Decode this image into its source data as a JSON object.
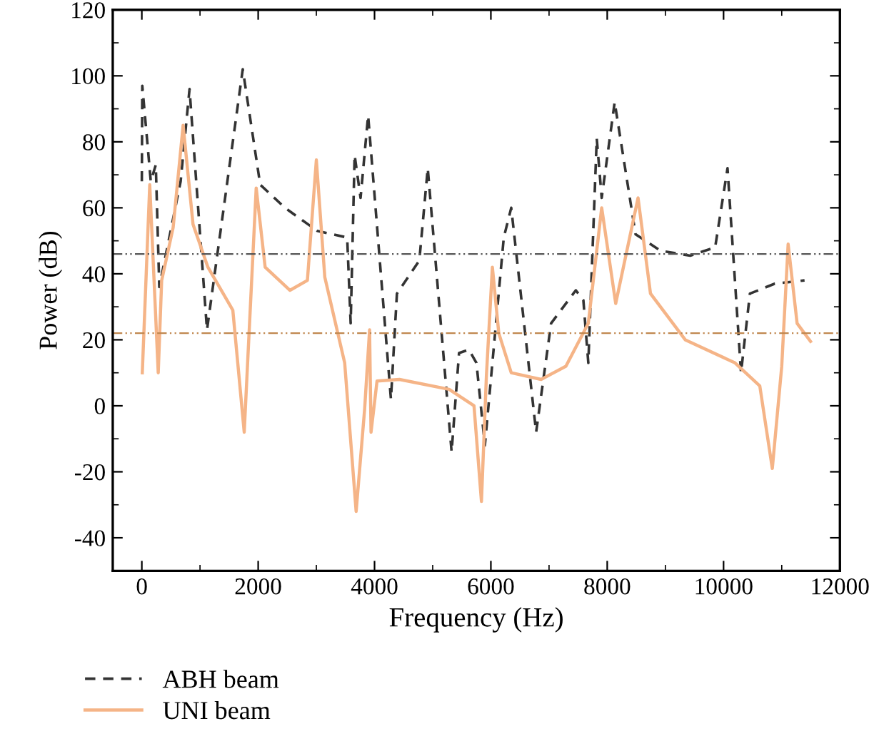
{
  "chart_data": {
    "type": "line",
    "xlabel": "Frequency (Hz)",
    "ylabel": "Power (dB)",
    "xlim": [
      -500,
      12000
    ],
    "xticks": [
      0,
      2000,
      4000,
      6000,
      8000,
      10000,
      12000
    ],
    "ylim": [
      -50,
      120
    ],
    "yticks": [
      -40,
      -20,
      0,
      20,
      40,
      60,
      80,
      100,
      120
    ],
    "grid": false,
    "legend": "bottom left",
    "marker": "none",
    "series": [
      {
        "name": "ABH beam",
        "color": "#333333",
        "line_style": "dashed",
        "x": [
          0,
          8,
          154,
          240,
          300,
          667,
          820,
          1120,
          1735,
          2035,
          2460,
          3017,
          3530,
          3590,
          3658,
          3760,
          3890,
          4282,
          4385,
          4770,
          4915,
          5325,
          5453,
          5624,
          5752,
          5897,
          6222,
          6350,
          6778,
          7035,
          7460,
          7590,
          7675,
          7820,
          7905,
          8128,
          8487,
          8915,
          9427,
          9855,
          10068,
          10300,
          10453,
          10880,
          11392
        ],
        "values": [
          68,
          97,
          68,
          73,
          36,
          68,
          96,
          23,
          102,
          67,
          60,
          53,
          51,
          25,
          76,
          63,
          88,
          2,
          34,
          44,
          72,
          -14,
          16,
          17,
          13,
          -12,
          51,
          60,
          -8,
          25,
          35,
          32,
          13,
          81,
          63,
          92,
          52,
          47,
          45.5,
          48,
          72,
          10,
          34,
          37,
          38
        ]
      },
      {
        "name": "UNI beam",
        "color": "#f5b487",
        "line_style": "solid",
        "x": [
          8,
          136,
          282,
          341,
          538,
          710,
          880,
          1136,
          1564,
          1760,
          1966,
          2120,
          2547,
          2846,
          3000,
          3145,
          3487,
          3684,
          3830,
          3915,
          3940,
          4043,
          4428,
          5282,
          5710,
          5838,
          5923,
          6026,
          6136,
          6350,
          6864,
          7290,
          7675,
          7905,
          8146,
          8530,
          8744,
          9341,
          10197,
          10623,
          10838,
          11000,
          11110,
          11264,
          11495
        ],
        "values": [
          10,
          67,
          10,
          38,
          54,
          85,
          55,
          42,
          29,
          -8,
          66,
          42,
          35,
          38,
          74.5,
          39,
          13,
          -32,
          -1,
          23,
          -8,
          7.5,
          8,
          5,
          0,
          -29,
          9,
          42,
          22,
          10,
          8,
          12,
          25,
          60,
          31,
          63,
          34,
          20,
          13,
          6,
          -19,
          12,
          49,
          25,
          19.5
        ]
      }
    ],
    "ref_lines": [
      {
        "axis": "y",
        "value": 46,
        "color": "#555555",
        "line_style": "dashdot"
      },
      {
        "axis": "y",
        "value": 22,
        "color": "#c0874f",
        "line_style": "dashdot"
      }
    ]
  }
}
